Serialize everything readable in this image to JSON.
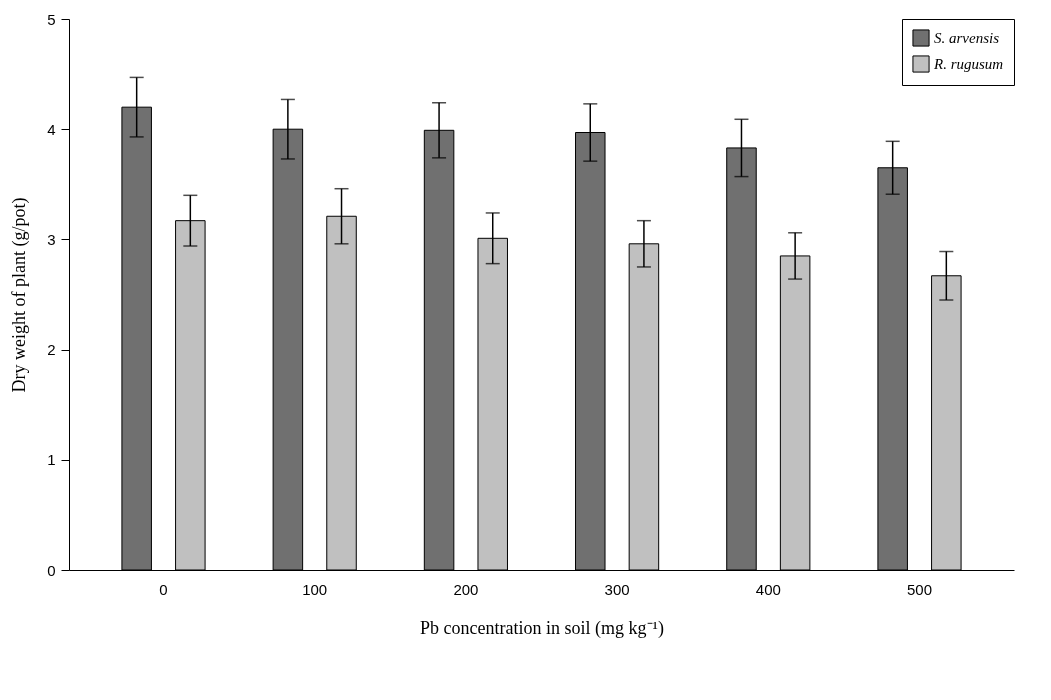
{
  "chart_data": {
    "type": "bar",
    "xlabel": "Pb concentration in soil (mg kg⁻¹)",
    "ylabel": "Dry weight of plant (g/pot)",
    "categories": [
      "0",
      "100",
      "200",
      "300",
      "400",
      "500"
    ],
    "series": [
      {
        "name": "S. arvensis",
        "color": "#707070",
        "values": [
          4.2,
          4.0,
          3.99,
          3.97,
          3.83,
          3.65
        ],
        "errors": [
          0.27,
          0.27,
          0.25,
          0.26,
          0.26,
          0.24
        ]
      },
      {
        "name": "R. rugusum",
        "color": "#c0c0c0",
        "values": [
          3.17,
          3.21,
          3.01,
          2.96,
          2.85,
          2.67
        ],
        "errors": [
          0.23,
          0.25,
          0.23,
          0.21,
          0.21,
          0.22
        ]
      }
    ],
    "ylim": [
      0,
      5
    ],
    "yticks": [
      0,
      1,
      2,
      3,
      4,
      5
    ],
    "grid": false,
    "legend": "top right"
  }
}
